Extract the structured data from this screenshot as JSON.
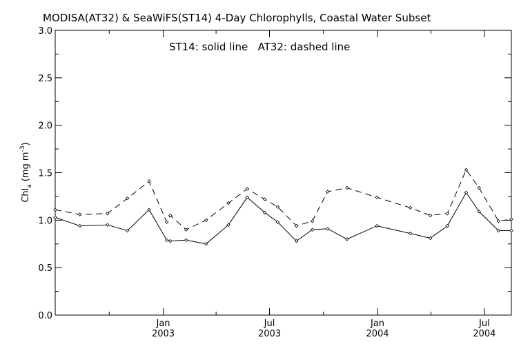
{
  "chart_data": {
    "type": "line",
    "title": "MODISA(AT32) & SeaWiFS(ST14) 4-Day Chlorophylls, Coastal Water Subset",
    "annotation": "ST14: solid line   AT32: dashed line",
    "ylabel": {
      "main": "Chl",
      "sub": "a",
      "units": "(mg m",
      "sup": "-3",
      "close": ")"
    },
    "xlabel": "",
    "ylim": [
      0.0,
      3.0
    ],
    "xlim": [
      "2002-07-01",
      "2004-08-16"
    ],
    "yticks": [
      "0.0",
      "0.5",
      "1.0",
      "1.5",
      "2.0",
      "2.5",
      "3.0"
    ],
    "xticks": [
      {
        "month": "Jan",
        "year": "2003",
        "date": "2003-01-01"
      },
      {
        "month": "Jul",
        "year": "2003",
        "date": "2003-07-01"
      },
      {
        "month": "Jan",
        "year": "2004",
        "date": "2004-01-01"
      },
      {
        "month": "Jul",
        "year": "2004",
        "date": "2004-07-01"
      }
    ],
    "x": [
      "2002-07-01",
      "2002-08-12",
      "2002-09-28",
      "2002-11-01",
      "2002-12-08",
      "2003-01-07",
      "2003-01-13",
      "2003-02-09",
      "2003-03-15",
      "2003-04-22",
      "2003-05-24",
      "2003-06-23",
      "2003-07-15",
      "2003-08-16",
      "2003-09-12",
      "2003-10-08",
      "2003-11-10",
      "2003-12-31",
      "2004-02-26",
      "2004-03-31",
      "2004-04-29",
      "2004-05-31",
      "2004-06-22",
      "2004-07-25",
      "2004-08-16"
    ],
    "series": [
      {
        "name": "ST14",
        "style": "solid",
        "values": [
          1.03,
          0.94,
          0.95,
          0.89,
          1.11,
          0.79,
          0.78,
          0.79,
          0.75,
          0.95,
          1.24,
          1.08,
          0.98,
          0.78,
          0.9,
          0.91,
          0.8,
          0.94,
          0.86,
          0.81,
          0.94,
          1.29,
          1.09,
          0.89,
          0.89
        ]
      },
      {
        "name": "AT32",
        "style": "dashed",
        "values": [
          1.11,
          1.06,
          1.07,
          1.23,
          1.41,
          0.98,
          1.05,
          0.9,
          1.0,
          1.18,
          1.33,
          1.22,
          1.14,
          0.94,
          0.99,
          1.3,
          1.34,
          1.24,
          1.13,
          1.05,
          1.07,
          1.53,
          1.34,
          0.99,
          1.01
        ]
      }
    ],
    "grid": false,
    "colors": {
      "line": "#000000",
      "background": "#ffffff"
    }
  }
}
